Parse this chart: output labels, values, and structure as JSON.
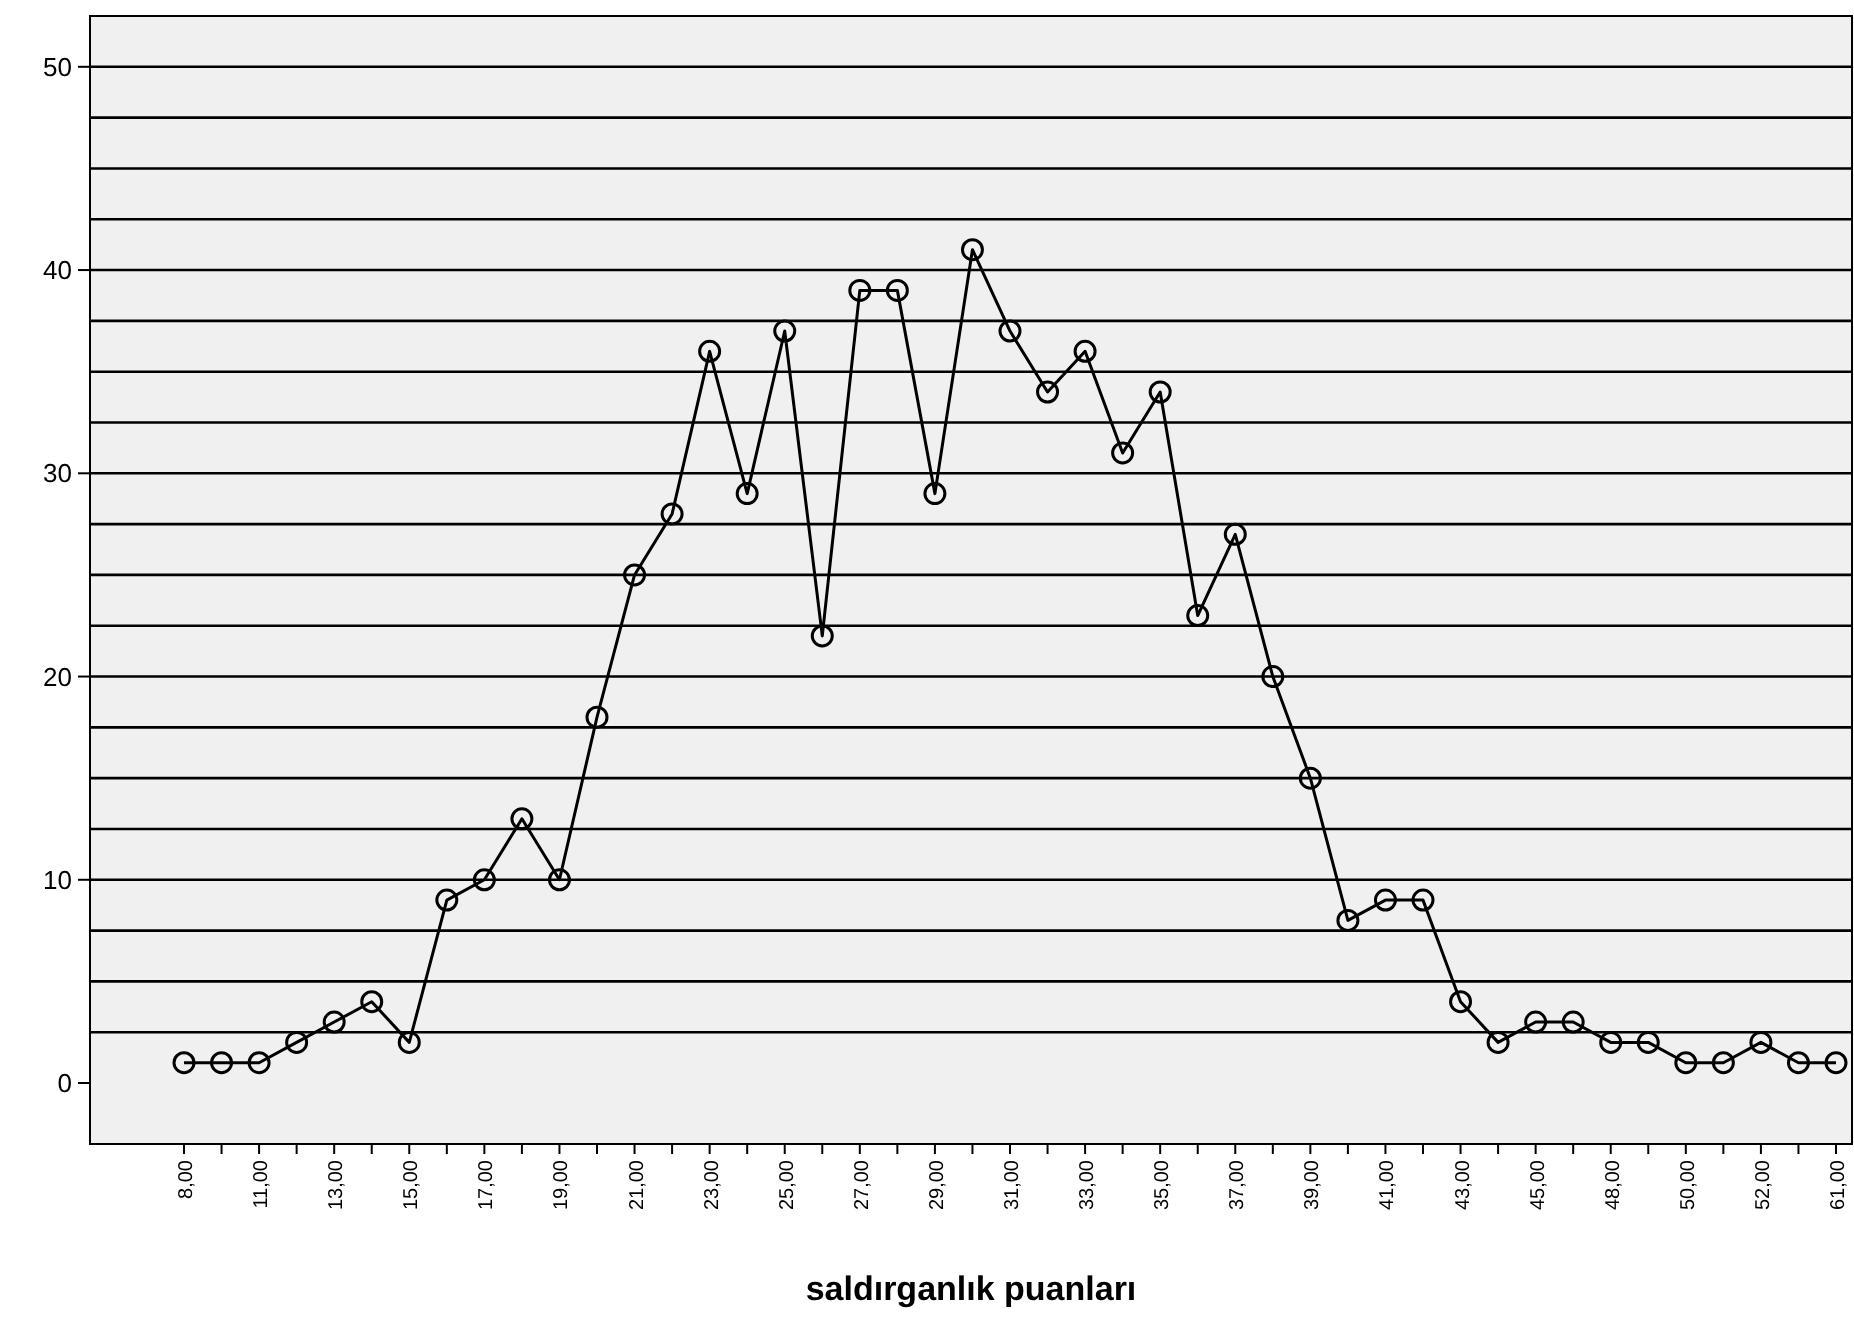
{
  "chart_data": {
    "type": "line",
    "xlabel": "saldırganlık puanları",
    "categories": [
      "8,00",
      null,
      "11,00",
      null,
      "13,00",
      null,
      "15,00",
      null,
      "17,00",
      null,
      "19,00",
      null,
      "21,00",
      null,
      "23,00",
      null,
      "25,00",
      null,
      "27,00",
      null,
      "29,00",
      null,
      "31,00",
      null,
      "33,00",
      null,
      "35,00",
      null,
      "37,00",
      null,
      "39,00",
      null,
      "41,00",
      null,
      "43,00",
      null,
      "45,00",
      null,
      "48,00",
      null,
      "50,00",
      null,
      "52,00",
      null,
      "61,00"
    ],
    "series": [
      {
        "color": "#000000",
        "values": [
          1,
          1,
          1,
          2,
          3,
          4,
          2,
          9,
          10,
          13,
          10,
          18,
          25,
          28,
          36,
          29,
          37,
          22,
          39,
          39,
          29,
          41,
          37,
          34,
          36,
          31,
          34,
          23,
          27,
          20,
          15,
          8,
          9,
          9,
          4,
          2,
          3,
          3,
          2,
          2,
          1,
          1,
          2,
          1,
          1
        ]
      }
    ],
    "ylim": [
      -3,
      52.5
    ],
    "yticks": [
      0,
      {
        "value": 2.5,
        "label": null
      },
      {
        "value": 5,
        "label": null
      },
      {
        "value": 7.5,
        "label": null
      },
      10,
      {
        "value": 12.5,
        "label": null
      },
      {
        "value": 15,
        "label": null
      },
      {
        "value": 17.5,
        "label": null
      },
      20,
      {
        "value": 22.5,
        "label": null
      },
      {
        "value": 25,
        "label": null
      },
      {
        "value": 27.5,
        "label": null
      },
      30,
      {
        "value": 32.5,
        "label": null
      },
      {
        "value": 35,
        "label": null
      },
      {
        "value": 37.5,
        "label": null
      },
      40,
      {
        "value": 42.5,
        "label": null
      },
      {
        "value": 45,
        "label": null
      },
      {
        "value": 47.5,
        "label": null
      },
      50
    ],
    "grid": "y",
    "marker": "circle",
    "line_style": "solid"
  }
}
